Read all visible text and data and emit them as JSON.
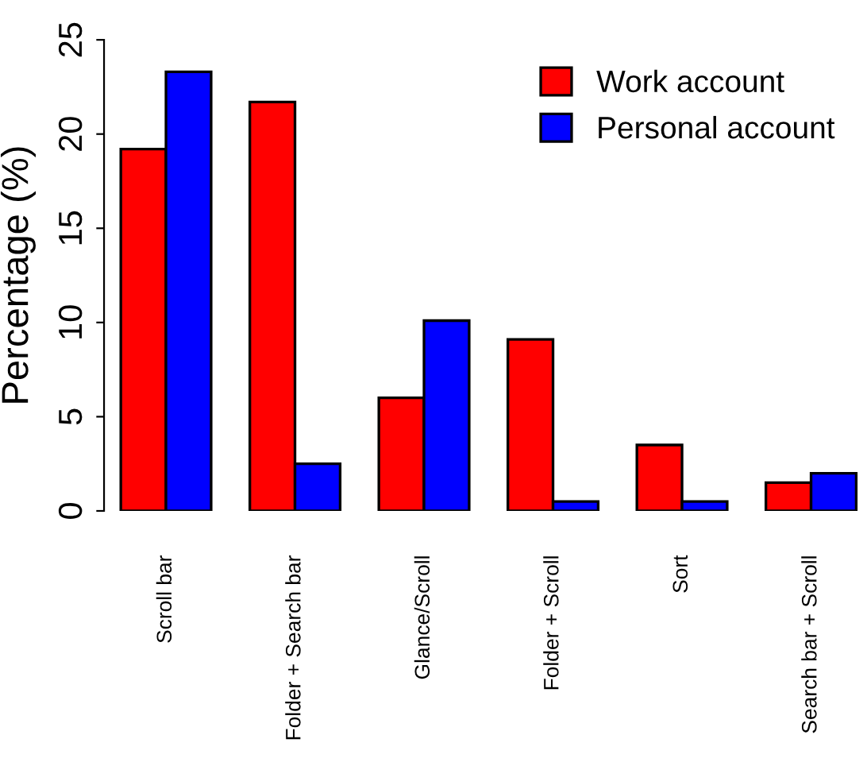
{
  "chart_data": {
    "type": "bar",
    "ylabel": "Percentage (%)",
    "categories": [
      "Scroll bar",
      "Folder + Search bar",
      "Glance/Scroll",
      "Folder + Scroll",
      "Sort",
      "Search bar + Scroll"
    ],
    "series": [
      {
        "name": "Work account",
        "color": "#ff0000",
        "values": [
          19.2,
          21.7,
          6.0,
          9.1,
          3.5,
          1.5
        ]
      },
      {
        "name": "Personal account",
        "color": "#0000ff",
        "values": [
          23.3,
          2.5,
          10.1,
          0.5,
          0.5,
          2.0
        ]
      }
    ],
    "ylim": [
      0,
      25
    ],
    "yticks": [
      0,
      5,
      10,
      15,
      20,
      25
    ],
    "grid": false,
    "legend": "top right"
  }
}
